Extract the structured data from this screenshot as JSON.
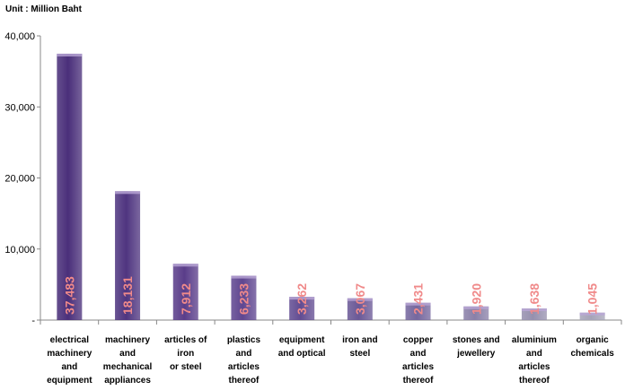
{
  "unit_label": "Unit : Million Baht",
  "chart_data": {
    "type": "bar",
    "title": "",
    "xlabel": "",
    "ylabel": "",
    "ylim": [
      0,
      40000
    ],
    "yticks": [
      "-",
      "10,000",
      "20,000",
      "30,000",
      "40,000"
    ],
    "yticks_values": [
      0,
      10000,
      20000,
      30000,
      40000
    ],
    "categories": [
      "electrical machinery and equipment",
      "machinery and mechanical appliances",
      "articles of iron or steel",
      "plastics and articles thereof",
      "equipment and optical",
      "iron and steel",
      "copper and articles thereof",
      "stones and jewellery",
      "aluminium and articles thereof",
      "organic chemicals"
    ],
    "category_lines": [
      [
        "electrical",
        "machinery",
        "and",
        "equipment"
      ],
      [
        "machinery",
        "and",
        "mechanical",
        "appliances"
      ],
      [
        "articles of",
        "iron",
        "or steel"
      ],
      [
        "plastics",
        "and",
        "articles",
        "thereof"
      ],
      [
        "equipment",
        "and optical"
      ],
      [
        "iron and steel"
      ],
      [
        "copper",
        "and",
        "articles",
        "thereof"
      ],
      [
        "stones and",
        "jewellery"
      ],
      [
        "aluminium",
        "and",
        "articles",
        "thereof"
      ],
      [
        "organic",
        "chemicals"
      ]
    ],
    "values": [
      37483,
      18131,
      7912,
      6233,
      3262,
      3067,
      2431,
      1920,
      1638,
      1045
    ],
    "value_labels": [
      "37,483",
      "18,131",
      "7,912",
      "6,233",
      "3,262",
      "3,067",
      "2,431",
      "1,920",
      "1,638",
      "1,045"
    ],
    "colors": [
      "#4a2f7a",
      "#4f3580",
      "#5a3d8a",
      "#5f4690",
      "#624c92",
      "#6a5896",
      "#75679e",
      "#8a80a8",
      "#9690ae",
      "#a6a4b8"
    ],
    "label_color": "#f08a8a",
    "grid": false
  }
}
